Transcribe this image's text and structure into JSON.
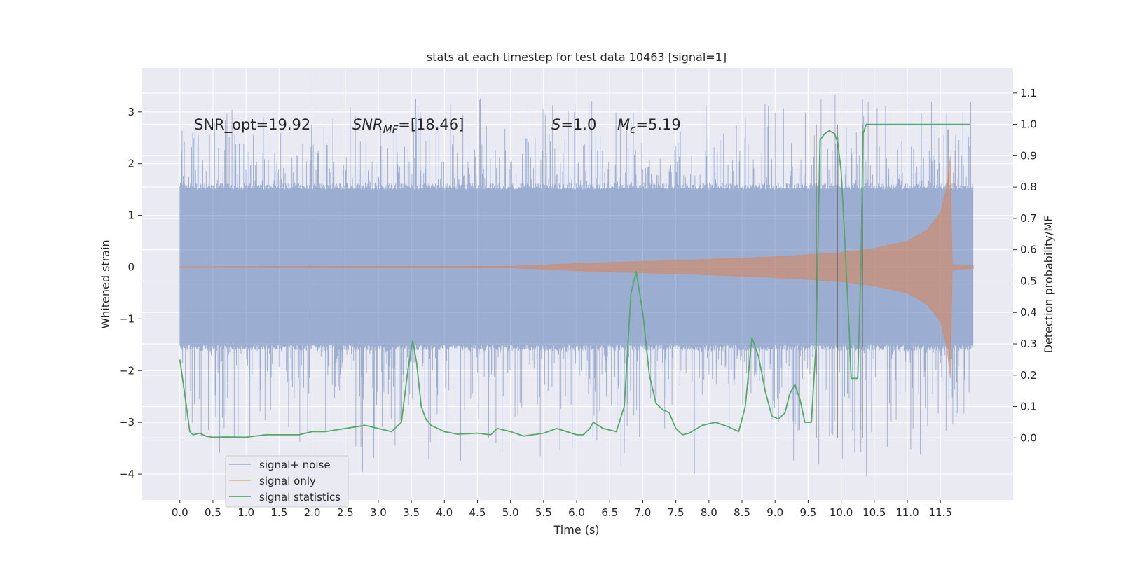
{
  "chart_data": {
    "type": "line",
    "title": "stats at each timestep for test data 10463 [signal=1]",
    "xlabel": "Time (s)",
    "ylabel_left": "Whitened strain",
    "ylabel_right": "Detection probability/MF",
    "xlim": [
      -0.58,
      12.6
    ],
    "ylim_left": [
      -4.5,
      3.85
    ],
    "ylim_right": [
      -0.198,
      1.18
    ],
    "x_ticks": [
      0.0,
      0.5,
      1.0,
      1.5,
      2.0,
      2.5,
      3.0,
      3.5,
      4.0,
      4.5,
      5.0,
      5.5,
      6.0,
      6.5,
      7.0,
      7.5,
      8.0,
      8.5,
      9.0,
      9.5,
      10.0,
      10.5,
      11.0,
      11.5
    ],
    "x_tick_labels": [
      "0.0",
      "0.5",
      "1.0",
      "1.5",
      "2.0",
      "2.5",
      "3.0",
      "3.5",
      "4.0",
      "4.5",
      "5.0",
      "5.5",
      "6.0",
      "6.5",
      "7.0",
      "7.5",
      "8.0",
      "8.5",
      "9.0",
      "9.5",
      "10.0",
      "10.5",
      "11.0",
      "11.5"
    ],
    "y_left_ticks": [
      -4,
      -3,
      -2,
      -1,
      0,
      1,
      2,
      3
    ],
    "y_left_tick_labels": [
      "−4",
      "−3",
      "−2",
      "−1",
      "0",
      "1",
      "2",
      "3"
    ],
    "y_right_ticks": [
      0.0,
      0.1,
      0.2,
      0.3,
      0.4,
      0.5,
      0.6,
      0.7,
      0.8,
      0.9,
      1.0,
      1.1
    ],
    "y_right_tick_labels": [
      "0.0",
      "0.1",
      "0.2",
      "0.3",
      "0.4",
      "0.5",
      "0.6",
      "0.7",
      "0.8",
      "0.9",
      "1.0",
      "1.1"
    ],
    "grid": true,
    "legend_position": "lower-left",
    "legend": [
      "signal+ noise",
      "signal only",
      "signal statistics"
    ],
    "annotations": {
      "snr_opt": "SNR_opt=19.92",
      "snr_mf_base": "SNR",
      "snr_mf_sub": "MF",
      "snr_mf_value": "=[18.46]",
      "s_italic": "S",
      "s_value": "=1.0",
      "mc_base": "M",
      "mc_sub": "c",
      "mc_value": "=5.19"
    },
    "vertical_lines_x": [
      9.62,
      9.94,
      10.32
    ],
    "series": [
      {
        "name": "signal+ noise",
        "axis": "left",
        "color": "#4c72b0",
        "time_range": [
          0.0,
          12.0
        ],
        "noise_band": [
          -1.5,
          1.5
        ],
        "peak_max": 3.5,
        "peak_min": -4.1
      },
      {
        "name": "signal only",
        "axis": "left",
        "color": "#dd8452",
        "envelope": [
          [
            0.0,
            0.01
          ],
          [
            5.0,
            0.015
          ],
          [
            5.5,
            0.04
          ],
          [
            6.0,
            0.07
          ],
          [
            7.0,
            0.11
          ],
          [
            8.0,
            0.15
          ],
          [
            9.0,
            0.2
          ],
          [
            9.5,
            0.24
          ],
          [
            10.0,
            0.28
          ],
          [
            10.5,
            0.36
          ],
          [
            11.0,
            0.5
          ],
          [
            11.3,
            0.72
          ],
          [
            11.5,
            1.05
          ],
          [
            11.6,
            1.55
          ],
          [
            11.65,
            2.15
          ],
          [
            11.68,
            0.05
          ],
          [
            12.0,
            0.02
          ]
        ]
      },
      {
        "name": "signal statistics",
        "axis": "right",
        "color": "#55a868",
        "x": [
          0.0,
          0.08,
          0.15,
          0.2,
          0.3,
          0.4,
          0.5,
          0.7,
          1.0,
          1.3,
          1.5,
          1.8,
          2.0,
          2.2,
          2.5,
          2.8,
          3.0,
          3.2,
          3.35,
          3.45,
          3.52,
          3.58,
          3.65,
          3.72,
          3.8,
          4.0,
          4.2,
          4.5,
          4.7,
          4.8,
          5.0,
          5.2,
          5.5,
          5.7,
          6.0,
          6.1,
          6.2,
          6.25,
          6.4,
          6.6,
          6.72,
          6.82,
          6.9,
          7.0,
          7.1,
          7.2,
          7.3,
          7.4,
          7.5,
          7.6,
          7.7,
          7.9,
          8.1,
          8.3,
          8.45,
          8.55,
          8.65,
          8.75,
          8.85,
          8.95,
          9.05,
          9.15,
          9.22,
          9.3,
          9.38,
          9.45,
          9.55,
          9.62,
          9.68,
          9.75,
          9.82,
          9.9,
          9.95,
          10.0,
          10.05,
          10.12,
          10.15,
          10.2,
          10.25,
          10.3,
          10.33,
          10.38,
          10.45,
          10.6,
          11.0,
          11.5,
          11.95
        ],
        "y": [
          0.25,
          0.13,
          0.02,
          0.01,
          0.015,
          0.005,
          0.002,
          0.003,
          0.002,
          0.01,
          0.01,
          0.01,
          0.02,
          0.02,
          0.03,
          0.04,
          0.03,
          0.02,
          0.05,
          0.22,
          0.31,
          0.24,
          0.1,
          0.06,
          0.04,
          0.02,
          0.012,
          0.015,
          0.01,
          0.03,
          0.02,
          0.006,
          0.015,
          0.03,
          0.01,
          0.01,
          0.03,
          0.05,
          0.03,
          0.02,
          0.1,
          0.46,
          0.53,
          0.4,
          0.2,
          0.11,
          0.09,
          0.08,
          0.03,
          0.01,
          0.015,
          0.04,
          0.05,
          0.035,
          0.02,
          0.1,
          0.32,
          0.26,
          0.15,
          0.07,
          0.06,
          0.08,
          0.14,
          0.17,
          0.12,
          0.05,
          0.05,
          0.3,
          0.95,
          0.97,
          0.98,
          0.97,
          0.94,
          0.85,
          0.65,
          0.35,
          0.19,
          0.19,
          0.19,
          0.55,
          0.97,
          1.0,
          1.0,
          1.0,
          1.0,
          1.0,
          1.0
        ]
      }
    ]
  }
}
